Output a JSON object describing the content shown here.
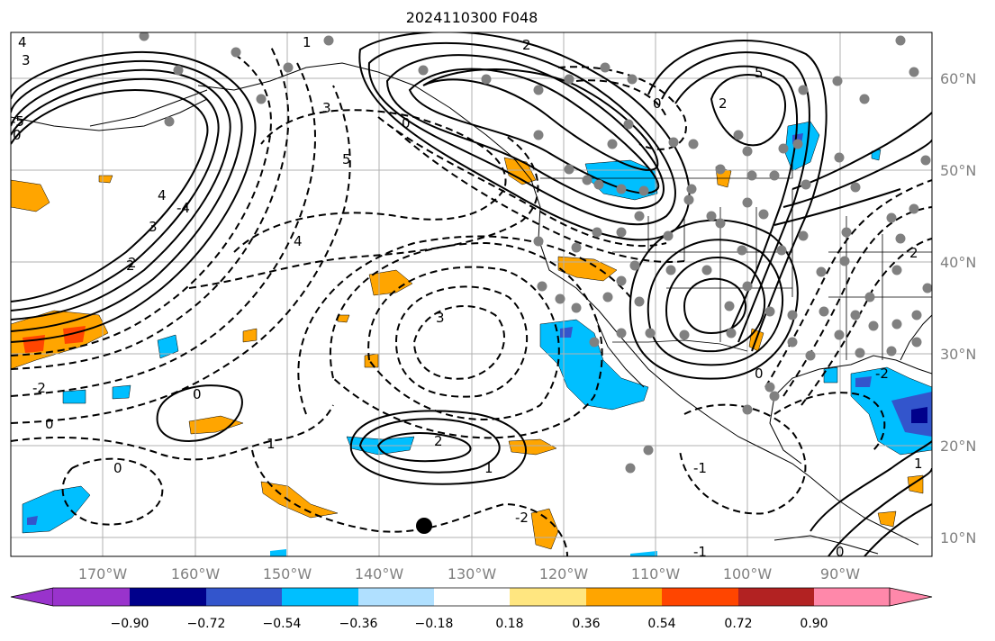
{
  "title": "2024110300 F048",
  "map": {
    "projection": "cylindrical",
    "lon_range": [
      -180,
      -80
    ],
    "lat_range": [
      8,
      65
    ],
    "lon_ticks": [
      "170°W",
      "160°W",
      "150°W",
      "140°W",
      "130°W",
      "120°W",
      "110°W",
      "100°W",
      "90°W"
    ],
    "lat_ticks": [
      "60°N",
      "50°N",
      "40°N",
      "30°N",
      "20°N",
      "10°N"
    ],
    "contour_labels": [
      "4",
      "3",
      "1",
      "2",
      "2",
      "0",
      "5",
      "0",
      "3",
      "5",
      "4",
      "3",
      "2",
      "1",
      "0",
      "2",
      "0",
      "-2",
      "4",
      "3",
      "2",
      "1",
      "0",
      "0",
      "-1",
      "-2",
      "2",
      "1",
      "0",
      "-1",
      "-2",
      "-5",
      "-4",
      "0"
    ],
    "colors": {
      "gridline": "#b0b0b0",
      "tick_text": "#808080",
      "contour": "#000000",
      "dot": "#808080"
    }
  },
  "colorbar": {
    "ticks": [
      "−0.90",
      "−0.72",
      "−0.54",
      "−0.36",
      "−0.18",
      "0.18",
      "0.36",
      "0.54",
      "0.72",
      "0.90"
    ],
    "colors": [
      "#9933cc",
      "#00008b",
      "#3355cc",
      "#00bfff",
      "#b0e0ff",
      "#ffffff",
      "#ffe680",
      "#ffa500",
      "#ff4500",
      "#b22222",
      "#ff88aa"
    ]
  }
}
